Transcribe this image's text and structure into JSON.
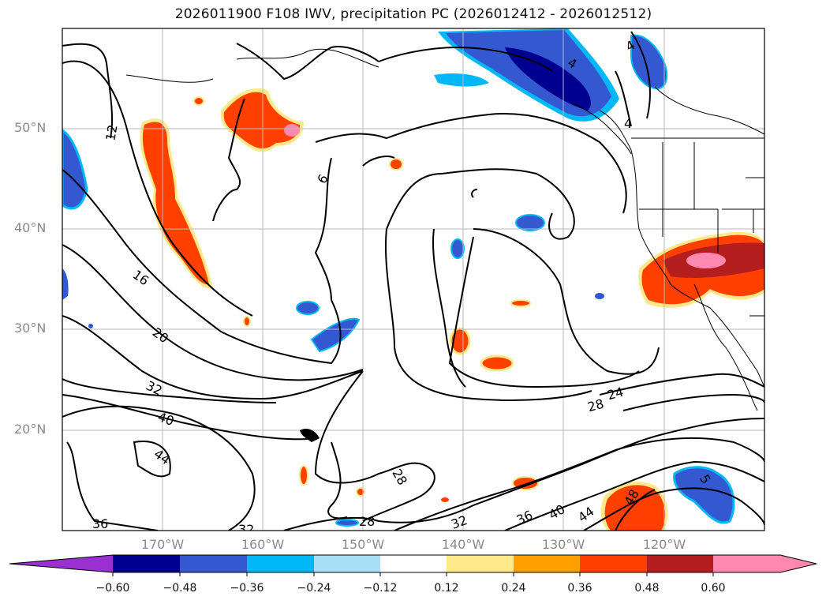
{
  "title": "2026011900 F108 IWV, precipitation PC (2026012412 - 2026012512)",
  "map": {
    "lon_range": [
      -180,
      -110
    ],
    "lat_range": [
      10,
      60
    ],
    "lat_labels": [
      {
        "value": 50,
        "text": "50°N"
      },
      {
        "value": 40,
        "text": "40°N"
      },
      {
        "value": 30,
        "text": "30°N"
      },
      {
        "value": 20,
        "text": "20°N"
      }
    ],
    "lon_labels": [
      {
        "value": -170,
        "text": "170°W"
      },
      {
        "value": -160,
        "text": "160°W"
      },
      {
        "value": -150,
        "text": "150°W"
      },
      {
        "value": -140,
        "text": "140°W"
      },
      {
        "value": -130,
        "text": "130°W"
      },
      {
        "value": -120,
        "text": "120°W"
      }
    ],
    "contour_labels": [
      "12",
      "16",
      "20",
      "32",
      "40",
      "44",
      "36",
      "32",
      "6",
      "28",
      "24",
      "28",
      "32",
      "36",
      "40",
      "44",
      "48",
      "4",
      "4",
      "4",
      "28",
      "5"
    ]
  },
  "colorbar": {
    "colors": [
      "#9b30d0",
      "#000090",
      "#3458d0",
      "#00b8f8",
      "#a8e0f8",
      "#ffffff",
      "#ffe88a",
      "#ffa000",
      "#ff4000",
      "#b41e1e",
      "#ff88b0"
    ],
    "tick_labels": [
      "−0.60",
      "−0.48",
      "−0.36",
      "−0.24",
      "−0.12",
      "0.12",
      "0.24",
      "0.36",
      "0.48",
      "0.60"
    ]
  }
}
